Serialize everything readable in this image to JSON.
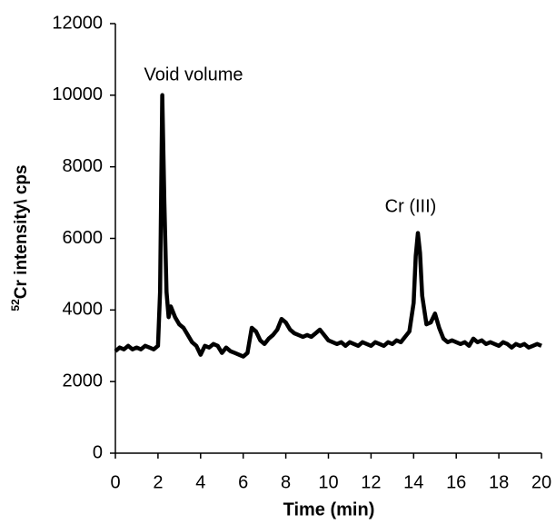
{
  "chart_data": {
    "type": "line",
    "xlabel": "Time (min)",
    "ylabel_sup": "52",
    "ylabel": "Cr intensity\\ cps",
    "annotations": [
      "Void volume",
      "Cr (III)"
    ],
    "color": "#000000",
    "x": [
      0,
      0.2,
      0.4,
      0.6,
      0.8,
      1.0,
      1.2,
      1.4,
      1.6,
      1.8,
      2.0,
      2.1,
      2.2,
      2.3,
      2.4,
      2.5,
      2.6,
      2.8,
      3.0,
      3.2,
      3.4,
      3.6,
      3.8,
      4.0,
      4.2,
      4.4,
      4.6,
      4.8,
      5.0,
      5.2,
      5.4,
      5.6,
      5.8,
      6.0,
      6.2,
      6.4,
      6.6,
      6.8,
      7.0,
      7.2,
      7.4,
      7.6,
      7.8,
      8.0,
      8.2,
      8.4,
      8.6,
      8.8,
      9.0,
      9.2,
      9.4,
      9.6,
      9.8,
      10.0,
      10.2,
      10.4,
      10.6,
      10.8,
      11.0,
      11.2,
      11.4,
      11.6,
      11.8,
      12.0,
      12.2,
      12.4,
      12.6,
      12.8,
      13.0,
      13.2,
      13.4,
      13.6,
      13.8,
      14.0,
      14.1,
      14.2,
      14.3,
      14.4,
      14.6,
      14.8,
      15.0,
      15.2,
      15.4,
      15.6,
      15.8,
      16.0,
      16.2,
      16.4,
      16.6,
      16.8,
      17.0,
      17.2,
      17.4,
      17.6,
      17.8,
      18.0,
      18.2,
      18.4,
      18.6,
      18.8,
      19.0,
      19.2,
      19.4,
      19.6,
      19.8,
      20.0
    ],
    "values": [
      2850,
      2950,
      2900,
      3000,
      2900,
      2950,
      2900,
      3000,
      2950,
      2900,
      3000,
      4500,
      10000,
      7000,
      4500,
      3800,
      4100,
      3800,
      3600,
      3500,
      3300,
      3100,
      3000,
      2750,
      3000,
      2950,
      3050,
      3000,
      2800,
      2950,
      2850,
      2800,
      2750,
      2700,
      2800,
      3500,
      3400,
      3150,
      3050,
      3200,
      3300,
      3450,
      3750,
      3650,
      3450,
      3350,
      3300,
      3250,
      3300,
      3250,
      3350,
      3450,
      3300,
      3150,
      3100,
      3050,
      3100,
      3000,
      3100,
      3050,
      3000,
      3100,
      3050,
      3000,
      3100,
      3050,
      3000,
      3100,
      3050,
      3150,
      3100,
      3250,
      3400,
      4200,
      5500,
      6150,
      5600,
      4400,
      3600,
      3650,
      3900,
      3500,
      3200,
      3100,
      3150,
      3100,
      3050,
      3100,
      3000,
      3200,
      3100,
      3150,
      3050,
      3100,
      3050,
      3000,
      3100,
      3050,
      2950,
      3050,
      3000,
      3050,
      2950,
      3000,
      3050,
      3000
    ],
    "xlim": [
      0,
      20
    ],
    "xticks": [
      0,
      2,
      4,
      6,
      8,
      10,
      12,
      14,
      16,
      18,
      20
    ],
    "ylim": [
      0,
      12000
    ],
    "yticks": [
      0,
      2000,
      4000,
      6000,
      8000,
      10000,
      12000
    ],
    "grid": false
  }
}
